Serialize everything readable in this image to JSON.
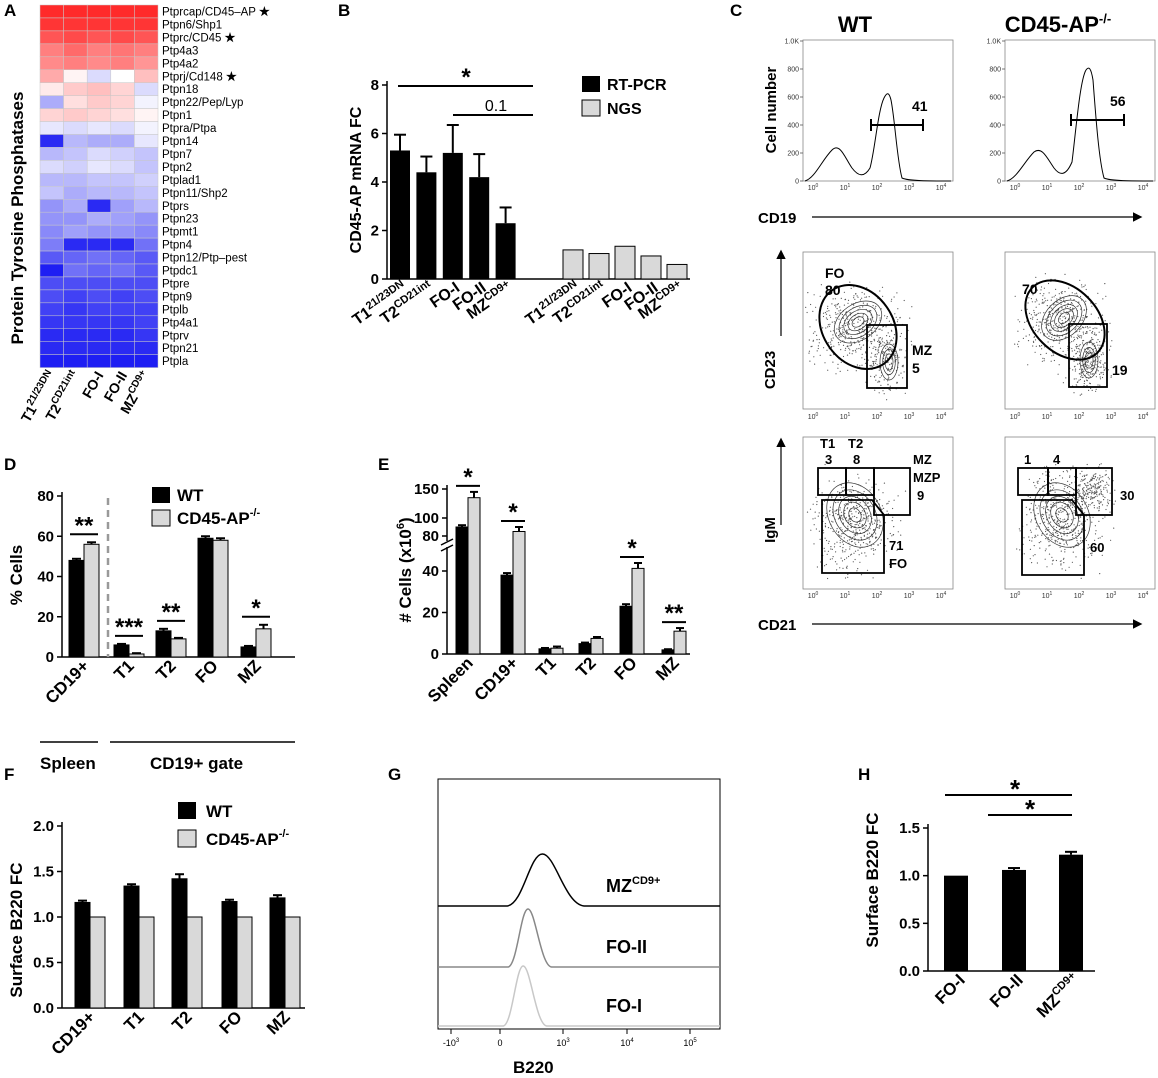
{
  "colors": {
    "bar_wt": "#000000",
    "bar_ko": "#d9d9d9",
    "hm_high": "#ff2a2a",
    "hm_low": "#1212f2",
    "hm_mid": "#ffffff"
  },
  "panel_labels": [
    "A",
    "B",
    "C",
    "D",
    "E",
    "F",
    "G",
    "H"
  ],
  "chart_data": [
    {
      "panel": "A",
      "type": "heatmap",
      "ylabel": "Protein Tyrosine Phosphatases",
      "columns": [
        "T1",
        "T2",
        "FO-I",
        "FO-II",
        "MZ"
      ],
      "column_sups": [
        "21/23DN",
        "CD21int",
        "",
        "",
        "CD9+"
      ],
      "rows": [
        "Ptprcap/CD45–AP",
        "Ptpn6/Shp1",
        "Ptprc/CD45",
        "Ptp4a3",
        "Ptp4a2",
        "Ptprj/Cd148",
        "Ptpn18",
        "Ptpn22/Pep/Lyp",
        "Ptpn1",
        "Ptpra/Ptpa",
        "Ptpn14",
        "Ptpn7",
        "Ptpn2",
        "Ptplad1",
        "Ptpn11/Shp2",
        "Ptprs",
        "Ptpn23",
        "Ptpmt1",
        "Ptpn4",
        "Ptpn12/Ptp–pest",
        "Ptpdc1",
        "Ptpre",
        "Ptpn9",
        "Ptplb",
        "Ptp4a1",
        "Ptprv",
        "Ptpn21",
        "Ptpla"
      ],
      "starred_rows": [
        "Ptprcap/CD45–AP",
        "Ptprc/CD45",
        "Ptprj/Cd148"
      ],
      "star": "★",
      "values": [
        [
          1.0,
          1.0,
          1.0,
          1.0,
          1.0
        ],
        [
          0.95,
          0.95,
          0.95,
          0.95,
          0.95
        ],
        [
          0.8,
          0.85,
          0.8,
          0.85,
          0.8
        ],
        [
          0.6,
          0.7,
          0.6,
          0.65,
          0.6
        ],
        [
          0.55,
          0.6,
          0.55,
          0.6,
          0.5
        ],
        [
          0.4,
          0.05,
          -0.15,
          0.0,
          0.3
        ],
        [
          0.1,
          0.25,
          0.3,
          0.2,
          -0.15
        ],
        [
          -0.35,
          0.15,
          0.25,
          0.2,
          -0.05
        ],
        [
          0.2,
          0.25,
          0.2,
          0.15,
          0.05
        ],
        [
          -0.1,
          -0.15,
          -0.1,
          -0.15,
          -0.05
        ],
        [
          -0.9,
          -0.3,
          -0.35,
          -0.35,
          -0.1
        ],
        [
          -0.3,
          -0.25,
          -0.15,
          -0.2,
          -0.25
        ],
        [
          -0.15,
          -0.2,
          -0.1,
          -0.15,
          -0.25
        ],
        [
          -0.3,
          -0.3,
          -0.25,
          -0.25,
          -0.2
        ],
        [
          -0.25,
          -0.35,
          -0.3,
          -0.3,
          -0.25
        ],
        [
          -0.45,
          -0.35,
          -0.9,
          -0.4,
          -0.3
        ],
        [
          -0.45,
          -0.45,
          -0.35,
          -0.4,
          -0.45
        ],
        [
          -0.5,
          -0.4,
          -0.45,
          -0.45,
          -0.5
        ],
        [
          -0.55,
          -0.9,
          -0.9,
          -0.9,
          -0.6
        ],
        [
          -0.7,
          -0.65,
          -0.6,
          -0.65,
          -0.7
        ],
        [
          -0.95,
          -0.6,
          -0.65,
          -0.6,
          -0.7
        ],
        [
          -0.75,
          -0.75,
          -0.75,
          -0.75,
          -0.75
        ],
        [
          -0.75,
          -0.8,
          -0.75,
          -0.8,
          -0.75
        ],
        [
          -0.8,
          -0.85,
          -0.8,
          -0.8,
          -0.8
        ],
        [
          -0.85,
          -0.85,
          -0.85,
          -0.85,
          -0.8
        ],
        [
          -0.9,
          -0.9,
          -0.9,
          -0.9,
          -0.85
        ],
        [
          -0.9,
          -0.9,
          -0.9,
          -0.9,
          -0.9
        ],
        [
          -0.95,
          -0.95,
          -0.95,
          -0.95,
          -0.95
        ]
      ]
    },
    {
      "panel": "B",
      "type": "bar",
      "ylabel": "CD45-AP mRNA FC",
      "ylim": [
        0,
        8
      ],
      "yticks": [
        "0",
        "2",
        "4",
        "6",
        "8"
      ],
      "series": [
        {
          "name": "RT-PCR",
          "categories": [
            "T1",
            "T2",
            "FO-I",
            "FO-II",
            "MZ"
          ],
          "sups": [
            "21/23DN",
            "CD21int",
            "",
            "",
            "CD9+"
          ],
          "values": [
            5.3,
            4.4,
            5.2,
            4.2,
            2.3
          ],
          "errors": [
            0.65,
            0.65,
            1.15,
            0.95,
            0.65
          ]
        },
        {
          "name": "NGS",
          "categories": [
            "T1",
            "T2",
            "FO-I",
            "FO-II",
            "MZ"
          ],
          "sups": [
            "21/23DN",
            "CD21int",
            "",
            "",
            "CD9+"
          ],
          "values": [
            1.2,
            1.05,
            1.35,
            0.95,
            0.6
          ]
        }
      ],
      "annotations": [
        "*",
        "0.1"
      ]
    },
    {
      "panel": "D",
      "type": "bar",
      "ylabel": "% Cells",
      "ylim": [
        0,
        80
      ],
      "yticks": [
        "0",
        "20",
        "40",
        "60",
        "80"
      ],
      "categories": [
        "CD19+",
        "T1",
        "T2",
        "FO",
        "MZ"
      ],
      "series": [
        {
          "name": "WT",
          "values": [
            48,
            6,
            13,
            59,
            5
          ],
          "errors": [
            0.8,
            0.5,
            1.0,
            1.0,
            0.5
          ]
        },
        {
          "name": "CD45-AP",
          "sup": "-/-",
          "values": [
            56,
            1.5,
            9,
            58,
            14
          ],
          "errors": [
            1.0,
            0.4,
            0.5,
            1.0,
            2.0
          ]
        }
      ],
      "significance": [
        "**",
        "***",
        "**",
        "",
        "*"
      ],
      "groups": [
        "Spleen",
        "CD19+ gate"
      ]
    },
    {
      "panel": "E",
      "type": "bar",
      "ylabel": "# Cells (x10",
      "ylabel_sup": "6",
      "ylabel_end": ")",
      "yticks": [
        "0",
        "20",
        "40",
        "80",
        "100",
        "150"
      ],
      "categories": [
        "Spleen",
        "CD19+",
        "T1",
        "T2",
        "FO",
        "MZ"
      ],
      "series": [
        {
          "name": "WT",
          "values": [
            90,
            38,
            2.5,
            5,
            23,
            2
          ],
          "errors": [
            2,
            1,
            0.4,
            0.5,
            1,
            0.3
          ]
        },
        {
          "name": "CD45-AP",
          "sup": "-/-",
          "values": [
            135,
            85,
            2.8,
            7.5,
            44,
            11
          ],
          "errors": [
            10,
            5,
            0.8,
            0.7,
            6,
            1.5
          ]
        }
      ],
      "significance": [
        "*",
        "*",
        "",
        "",
        "*",
        "**"
      ]
    },
    {
      "panel": "F",
      "type": "bar",
      "ylabel": "Surface B220 FC",
      "ylim": [
        0,
        2.0
      ],
      "yticks": [
        "0.0",
        "0.5",
        "1.0",
        "1.5",
        "2.0"
      ],
      "categories": [
        "CD19+",
        "T1",
        "T2",
        "FO",
        "MZ"
      ],
      "series": [
        {
          "name": "WT",
          "values": [
            1.16,
            1.34,
            1.42,
            1.17,
            1.21
          ],
          "errors": [
            0.02,
            0.02,
            0.05,
            0.02,
            0.03
          ]
        },
        {
          "name": "CD45-AP",
          "sup": "-/-",
          "values": [
            1.0,
            1.0,
            1.0,
            1.0,
            1.0
          ]
        }
      ]
    },
    {
      "panel": "H",
      "type": "bar",
      "ylabel": "Surface B220 FC",
      "ylim": [
        0,
        1.5
      ],
      "yticks": [
        "0.0",
        "0.5",
        "1.0",
        "1.5"
      ],
      "categories": [
        "FO-I",
        "FO-II",
        "MZ"
      ],
      "sups": [
        "",
        "",
        "CD9+"
      ],
      "values": [
        1.0,
        1.06,
        1.22
      ],
      "errors": [
        0.0,
        0.02,
        0.03
      ],
      "annotations": [
        "*",
        "*"
      ]
    },
    {
      "panel": "G",
      "type": "histogram",
      "xlabel": "B220",
      "xticks": [
        "-10",
        "0",
        "10",
        "10",
        "10"
      ],
      "xtick_sups": [
        "3",
        "",
        "3",
        "4",
        "5"
      ],
      "tracks": [
        {
          "name": "MZ",
          "sup": "CD9+",
          "color": "#000000",
          "peak": 0.62
        },
        {
          "name": "FO-II",
          "sup": "",
          "color": "#888888",
          "peak": 0.5
        },
        {
          "name": "FO-I",
          "sup": "",
          "color": "#c8c8c8",
          "peak": 0.46
        }
      ]
    }
  ],
  "flow": {
    "headers": {
      "wt": "WT",
      "ko": "CD45-AP",
      "ko_sup": "-/-"
    },
    "row1": {
      "ylabel": "Cell number",
      "xlabel": "CD19",
      "wt_value": "41",
      "ko_value": "56",
      "yticks": [
        "0",
        "200",
        "400",
        "600",
        "800",
        "1.0K"
      ]
    },
    "row2": {
      "ylabel": "CD23",
      "wt_fo_label": "FO",
      "wt_fo": "80",
      "wt_mz_label": "MZ",
      "wt_mz": "5",
      "ko_fo": "70",
      "ko_mz": "19"
    },
    "row3": {
      "ylabel": "IgM",
      "xlabel": "CD21",
      "wt_t1_label": "T1",
      "wt_t2_label": "T2",
      "wt_t1": "3",
      "wt_t2": "8",
      "wt_mz_label": "MZ",
      "wt_mzp_label": "MZP",
      "wt_mzp": "9",
      "wt_fo": "71",
      "wt_fo_label": "FO",
      "ko_t1": "1",
      "ko_t2": "4",
      "ko_mzp": "30",
      "ko_fo": "60"
    },
    "log_ticks": [
      "10",
      "10",
      "10",
      "10",
      "10"
    ],
    "log_sups": [
      "0",
      "1",
      "2",
      "3",
      "4"
    ]
  }
}
